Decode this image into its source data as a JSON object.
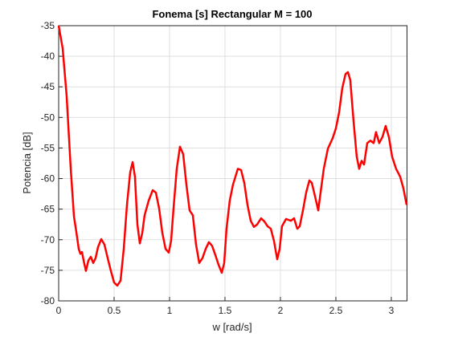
{
  "chart_data": {
    "type": "line",
    "title": "Fonema [s] Rectangular M = 100",
    "xlabel": "w [rad/s]",
    "ylabel": "Potencia [dB]",
    "xlim": [
      0,
      3.1416
    ],
    "ylim": [
      -80,
      -35
    ],
    "xticks": [
      0,
      0.5,
      1,
      1.5,
      2,
      2.5,
      3
    ],
    "yticks": [
      -80,
      -75,
      -70,
      -65,
      -60,
      -55,
      -50,
      -45,
      -40,
      -35
    ],
    "grid": true,
    "x": [
      0,
      0.036,
      0.072,
      0.109,
      0.138,
      0.16,
      0.181,
      0.196,
      0.21,
      0.225,
      0.246,
      0.268,
      0.29,
      0.312,
      0.333,
      0.355,
      0.384,
      0.413,
      0.442,
      0.471,
      0.5,
      0.529,
      0.558,
      0.587,
      0.616,
      0.645,
      0.667,
      0.688,
      0.71,
      0.732,
      0.754,
      0.775,
      0.812,
      0.848,
      0.877,
      0.906,
      0.935,
      0.964,
      0.993,
      1.014,
      1.036,
      1.065,
      1.094,
      1.123,
      1.152,
      1.181,
      1.21,
      1.239,
      1.268,
      1.297,
      1.326,
      1.355,
      1.384,
      1.413,
      1.442,
      1.471,
      1.493,
      1.514,
      1.543,
      1.572,
      1.616,
      1.645,
      1.674,
      1.703,
      1.732,
      1.761,
      1.79,
      1.826,
      1.855,
      1.884,
      1.913,
      1.942,
      1.971,
      1.993,
      2.014,
      2.051,
      2.094,
      2.123,
      2.152,
      2.174,
      2.203,
      2.232,
      2.261,
      2.283,
      2.312,
      2.341,
      2.362,
      2.391,
      2.428,
      2.471,
      2.5,
      2.529,
      2.558,
      2.587,
      2.609,
      2.63,
      2.659,
      2.688,
      2.71,
      2.732,
      2.754,
      2.783,
      2.812,
      2.841,
      2.862,
      2.891,
      2.92,
      2.949,
      2.978,
      3.007,
      3.043,
      3.08,
      3.109,
      3.138
    ],
    "series": [
      {
        "color": "#ff0000",
        "values": [
          -35,
          -38.7,
          -46.5,
          -58.4,
          -66.2,
          -68.8,
          -71.5,
          -72.3,
          -72.0,
          -73.4,
          -75.1,
          -73.4,
          -72.8,
          -73.8,
          -73.0,
          -71.2,
          -69.9,
          -70.8,
          -73.0,
          -75.1,
          -77.0,
          -77.5,
          -76.7,
          -71.5,
          -64.3,
          -59.0,
          -57.3,
          -59.7,
          -67.5,
          -70.6,
          -68.9,
          -66.0,
          -63.6,
          -61.9,
          -62.3,
          -64.9,
          -68.9,
          -71.5,
          -72.1,
          -70.2,
          -64.9,
          -58.4,
          -54.8,
          -56.0,
          -61.0,
          -65.2,
          -66.0,
          -70.8,
          -73.8,
          -73.0,
          -71.5,
          -70.4,
          -71.0,
          -72.5,
          -74.1,
          -75.4,
          -73.8,
          -68.2,
          -63.6,
          -61.0,
          -58.4,
          -58.6,
          -60.7,
          -64.3,
          -66.9,
          -67.9,
          -67.5,
          -66.5,
          -67.0,
          -67.8,
          -68.2,
          -70.2,
          -73.2,
          -71.5,
          -67.8,
          -66.6,
          -66.9,
          -66.5,
          -68.2,
          -67.8,
          -65.2,
          -62.3,
          -60.3,
          -60.7,
          -62.9,
          -65.2,
          -62.3,
          -58.4,
          -55.1,
          -53.4,
          -51.8,
          -49.2,
          -45.2,
          -42.9,
          -42.6,
          -43.9,
          -50.5,
          -56.4,
          -58.4,
          -57.1,
          -57.7,
          -54.2,
          -53.8,
          -54.2,
          -52.4,
          -54.2,
          -53.2,
          -51.4,
          -53.2,
          -56.4,
          -58.4,
          -59.7,
          -61.6,
          -64.3
        ]
      }
    ]
  }
}
